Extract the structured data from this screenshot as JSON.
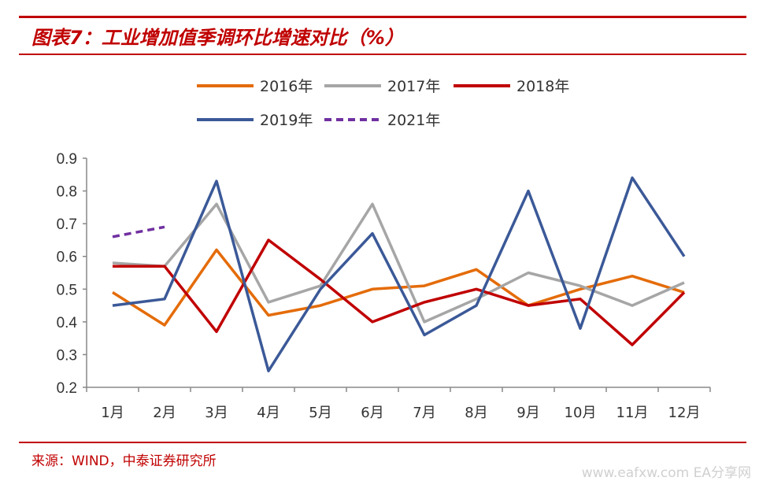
{
  "header": {
    "title": "图表7：工业增加值季调环比增速对比（%）"
  },
  "footer": {
    "source": "来源：WIND，中泰证券研究所",
    "watermark": "www.eafxw.com EA分享网"
  },
  "chart_data": {
    "type": "line",
    "title": "图表7：工业增加值季调环比增速对比（%）",
    "categories": [
      "1月",
      "2月",
      "3月",
      "4月",
      "5月",
      "6月",
      "7月",
      "8月",
      "9月",
      "10月",
      "11月",
      "12月"
    ],
    "ylim": [
      0.2,
      0.9
    ],
    "yticks": [
      "0.9",
      "0.8",
      "0.7",
      "0.6",
      "0.5",
      "0.4",
      "0.3",
      "0.2"
    ],
    "ytick_values": [
      0.9,
      0.8,
      0.7,
      0.6,
      0.5,
      0.4,
      0.3,
      0.2
    ],
    "grid": false,
    "legend_position": "top",
    "series": [
      {
        "name": "2016年",
        "color": "#e46c0a",
        "dashed": false,
        "values": [
          0.49,
          0.39,
          0.62,
          0.42,
          0.45,
          0.5,
          0.51,
          0.56,
          0.45,
          0.5,
          0.54,
          0.49
        ]
      },
      {
        "name": "2017年",
        "color": "#a6a6a6",
        "dashed": false,
        "values": [
          0.58,
          0.57,
          0.76,
          0.46,
          0.51,
          0.76,
          0.4,
          0.47,
          0.55,
          0.51,
          0.45,
          0.52
        ]
      },
      {
        "name": "2018年",
        "color": "#c00000",
        "dashed": false,
        "values": [
          0.57,
          0.57,
          0.37,
          0.65,
          0.53,
          0.4,
          0.46,
          0.5,
          0.45,
          0.47,
          0.33,
          0.49
        ]
      },
      {
        "name": "2019年",
        "color": "#3b5998",
        "dashed": false,
        "values": [
          0.45,
          0.47,
          0.83,
          0.25,
          0.5,
          0.67,
          0.36,
          0.45,
          0.8,
          0.38,
          0.84,
          0.6
        ]
      },
      {
        "name": "2021年",
        "color": "#7030a0",
        "dashed": true,
        "values": [
          0.66,
          0.69,
          null,
          null,
          null,
          null,
          null,
          null,
          null,
          null,
          null,
          null
        ]
      }
    ]
  }
}
